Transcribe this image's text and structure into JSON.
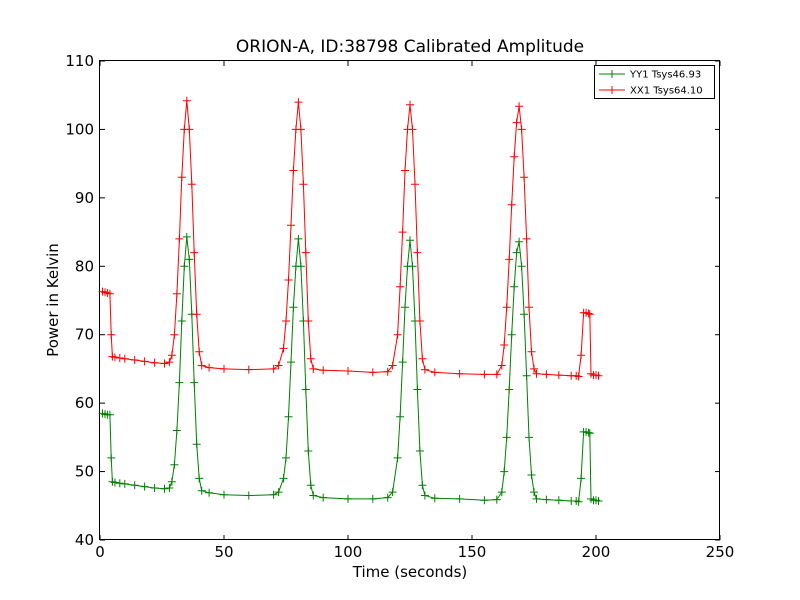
{
  "chart_data": {
    "type": "line",
    "title": "ORION-A, ID:38798 Calibrated Amplitude",
    "xlabel": "Time (seconds)",
    "ylabel": "Power in Kelvin",
    "xlim": [
      0,
      250
    ],
    "ylim": [
      40,
      110
    ],
    "x_ticks": [
      0,
      50,
      100,
      150,
      200,
      250
    ],
    "y_ticks": [
      40,
      50,
      60,
      70,
      80,
      90,
      100,
      110
    ],
    "x_tick_labels": [
      "0",
      "50",
      "100",
      "150",
      "200",
      "250"
    ],
    "y_tick_labels": [
      "40",
      "50",
      "60",
      "70",
      "80",
      "90",
      "100",
      "110"
    ],
    "grid": false,
    "legend_position": "top-right",
    "marker": "plus",
    "series": [
      {
        "name": "YY1 Tsys46.93",
        "color": "#008000",
        "x": [
          1,
          2,
          3,
          4,
          4.5,
          5,
          6,
          8,
          10,
          14,
          18,
          22,
          26,
          28,
          29,
          30,
          31,
          32,
          33,
          34,
          35,
          36,
          37,
          38,
          39,
          40,
          41,
          44,
          50,
          60,
          70,
          72,
          74,
          75,
          76,
          77,
          78,
          79,
          80,
          81,
          82,
          83,
          84,
          85,
          86,
          90,
          100,
          110,
          116,
          118,
          120,
          121,
          122,
          123,
          124,
          125,
          126,
          127,
          128,
          129,
          130,
          131,
          135,
          145,
          155,
          160,
          162,
          163,
          164,
          165,
          166,
          167,
          168,
          169,
          170,
          171,
          172,
          173,
          174,
          175,
          176,
          180,
          185,
          190,
          192,
          193,
          194,
          195,
          196,
          197,
          197.5,
          198,
          199,
          200,
          201
        ],
        "values": [
          58.5,
          58.4,
          58.3,
          58.3,
          52.0,
          48.5,
          48.4,
          48.3,
          48.2,
          48.0,
          47.8,
          47.6,
          47.5,
          47.6,
          48.5,
          51.0,
          56.0,
          63.0,
          72.0,
          80.0,
          84.3,
          81.0,
          73.0,
          63.0,
          54.0,
          49.0,
          47.2,
          46.9,
          46.6,
          46.5,
          46.6,
          47.0,
          49.0,
          52.0,
          58.0,
          66.0,
          74.0,
          80.0,
          84.0,
          80.0,
          72.0,
          62.0,
          53.0,
          48.0,
          46.5,
          46.2,
          46.0,
          46.0,
          46.2,
          47.0,
          52.0,
          58.0,
          66.0,
          74.0,
          80.0,
          83.8,
          80.0,
          72.0,
          62.0,
          53.0,
          48.0,
          46.5,
          46.1,
          46.0,
          45.8,
          45.9,
          47.0,
          50.0,
          55.0,
          62.0,
          70.0,
          77.0,
          82.0,
          83.6,
          80.0,
          73.0,
          64.0,
          55.0,
          49.5,
          47.0,
          46.0,
          45.9,
          45.8,
          45.7,
          45.7,
          45.6,
          49.0,
          55.8,
          55.8,
          55.7,
          55.6,
          46.0,
          45.8,
          45.8,
          45.7
        ]
      },
      {
        "name": "XX1 Tsys64.10",
        "color": "#ff0000",
        "x": [
          1,
          2,
          3,
          4,
          4.5,
          5,
          6,
          8,
          10,
          14,
          18,
          22,
          26,
          28,
          29,
          30,
          31,
          32,
          33,
          34,
          35,
          36,
          37,
          38,
          39,
          40,
          41,
          44,
          50,
          60,
          70,
          72,
          74,
          75,
          76,
          77,
          78,
          79,
          80,
          81,
          82,
          83,
          84,
          85,
          86,
          90,
          100,
          110,
          116,
          118,
          120,
          121,
          122,
          123,
          124,
          125,
          126,
          127,
          128,
          129,
          130,
          131,
          135,
          145,
          155,
          160,
          162,
          163,
          164,
          165,
          166,
          167,
          168,
          169,
          170,
          171,
          172,
          173,
          174,
          175,
          176,
          180,
          185,
          190,
          192,
          193,
          194,
          195,
          196,
          197,
          197.5,
          198,
          199,
          200,
          201
        ],
        "values": [
          76.3,
          76.2,
          76.1,
          76.0,
          70.0,
          66.8,
          66.7,
          66.6,
          66.5,
          66.3,
          66.1,
          65.9,
          65.8,
          66.0,
          67.0,
          70.0,
          76.0,
          84.0,
          93.0,
          100.0,
          104.2,
          100.0,
          92.0,
          82.0,
          73.0,
          67.5,
          65.5,
          65.2,
          65.0,
          64.9,
          65.0,
          65.5,
          68.0,
          72.0,
          78.0,
          86.0,
          94.0,
          100.0,
          104.0,
          100.0,
          92.0,
          82.0,
          72.0,
          66.5,
          65.0,
          64.8,
          64.7,
          64.5,
          64.6,
          65.5,
          70.0,
          77.0,
          85.0,
          94.0,
          100.0,
          103.6,
          100.0,
          92.0,
          82.0,
          72.0,
          66.5,
          64.9,
          64.5,
          64.3,
          64.2,
          64.2,
          65.5,
          68.5,
          74.0,
          81.0,
          89.0,
          96.0,
          101.0,
          103.4,
          100.0,
          93.0,
          84.0,
          74.0,
          67.5,
          65.0,
          64.3,
          64.2,
          64.1,
          64.0,
          64.0,
          63.9,
          67.0,
          73.2,
          73.2,
          73.1,
          73.0,
          64.3,
          64.1,
          64.1,
          64.0
        ]
      }
    ]
  }
}
